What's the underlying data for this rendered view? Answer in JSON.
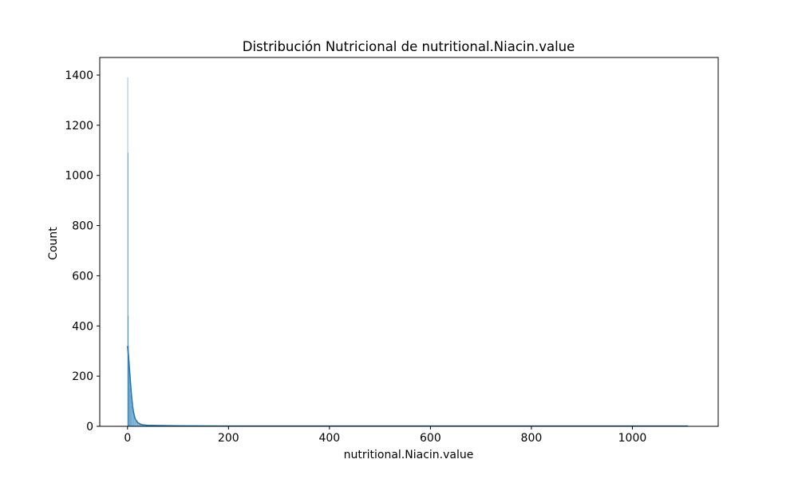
{
  "chart_data": {
    "type": "bar",
    "title": "Distribución Nutricional de nutritional.Niacin.value",
    "xlabel": "nutritional.Niacin.value",
    "ylabel": "Count",
    "xlim": [
      -55,
      1170
    ],
    "ylim": [
      0,
      1470
    ],
    "x_ticks": [
      0,
      200,
      400,
      600,
      800,
      1000
    ],
    "y_ticks": [
      0,
      200,
      400,
      600,
      800,
      1000,
      1200,
      1400
    ],
    "grid": false,
    "legend": "none",
    "colors": {
      "bar_fill": "#1f77b4",
      "kde_line": "#1f77b4"
    },
    "histogram": {
      "bins": [
        {
          "x0": 0.0,
          "x1": 0.5,
          "count": 1390
        },
        {
          "x0": 0.5,
          "x1": 1.0,
          "count": 1090
        },
        {
          "x0": 1.0,
          "x1": 1.5,
          "count": 440
        },
        {
          "x0": 1.5,
          "x1": 2.0,
          "count": 320
        },
        {
          "x0": 2.0,
          "x1": 3.0,
          "count": 270
        },
        {
          "x0": 3.0,
          "x1": 4.0,
          "count": 220
        },
        {
          "x0": 4.0,
          "x1": 5.0,
          "count": 180
        },
        {
          "x0": 5.0,
          "x1": 6.0,
          "count": 150
        },
        {
          "x0": 6.0,
          "x1": 7.0,
          "count": 125
        },
        {
          "x0": 7.0,
          "x1": 8.0,
          "count": 100
        },
        {
          "x0": 8.0,
          "x1": 10.0,
          "count": 80
        },
        {
          "x0": 10.0,
          "x1": 12.0,
          "count": 60
        },
        {
          "x0": 12.0,
          "x1": 15.0,
          "count": 40
        },
        {
          "x0": 15.0,
          "x1": 20.0,
          "count": 22
        },
        {
          "x0": 20.0,
          "x1": 25.0,
          "count": 12
        },
        {
          "x0": 25.0,
          "x1": 30.0,
          "count": 7
        },
        {
          "x0": 30.0,
          "x1": 40.0,
          "count": 4
        },
        {
          "x0": 40.0,
          "x1": 60.0,
          "count": 2
        },
        {
          "x0": 60.0,
          "x1": 100.0,
          "count": 1
        }
      ]
    },
    "kde": {
      "x": [
        0,
        2,
        4,
        6,
        8,
        10,
        12,
        15,
        20,
        25,
        30,
        40,
        60,
        100,
        200,
        400,
        600,
        800,
        1000,
        1110
      ],
      "y": [
        320,
        280,
        225,
        170,
        120,
        80,
        55,
        30,
        15,
        9,
        6,
        4,
        3,
        2,
        1,
        1,
        1,
        1,
        1,
        1
      ]
    }
  }
}
